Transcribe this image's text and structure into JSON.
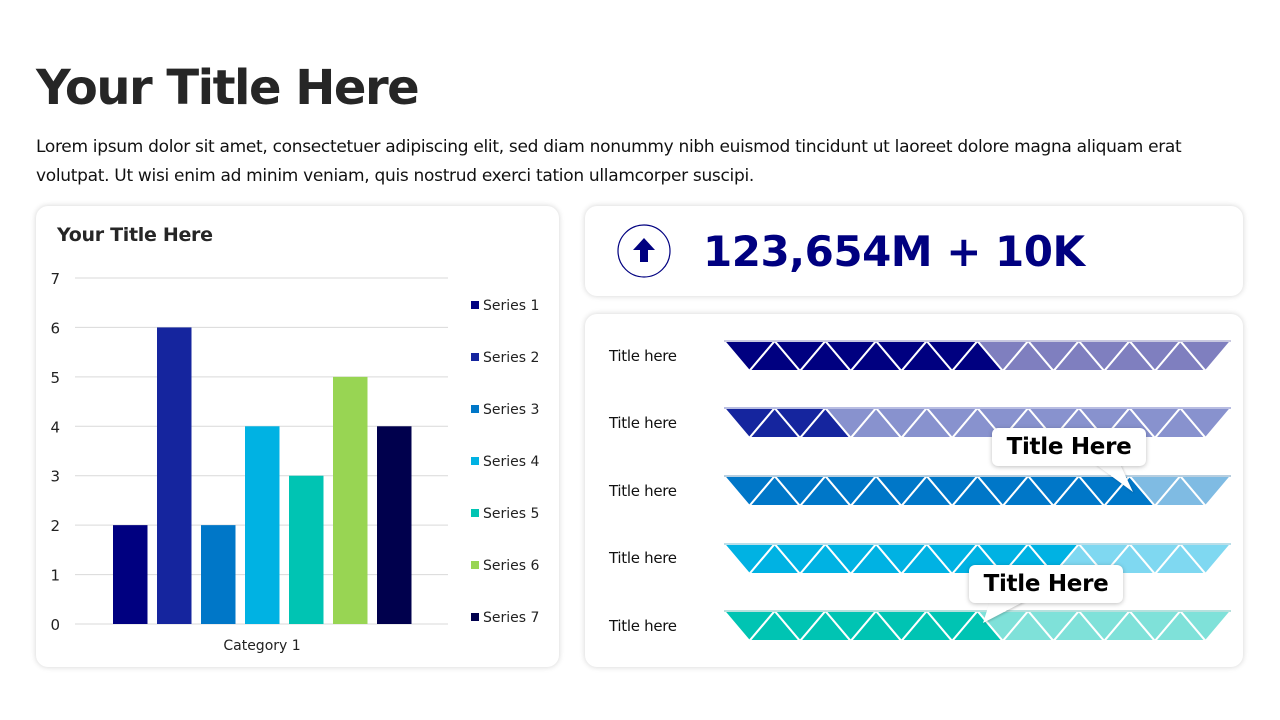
{
  "header": {
    "title": "Your Title Here",
    "body": "Lorem ipsum dolor sit amet, consectetuer adipiscing elit, sed diam nonummy nibh euismod tincidunt ut laoreet dolore magna aliquam erat volutpat. Ut wisi enim ad minim veniam, quis nostrud exerci tation ullamcorper suscipi."
  },
  "kpi": {
    "icon": "arrow-up-circle-icon",
    "value": "123,654M + 10K",
    "color": "#000080"
  },
  "chart_data": {
    "type": "bar",
    "title": "Your Title Here",
    "categories": [
      "Category 1"
    ],
    "series": [
      {
        "name": "Series 1",
        "values": [
          2
        ],
        "color": "#000080"
      },
      {
        "name": "Series 2",
        "values": [
          6
        ],
        "color": "#15259E"
      },
      {
        "name": "Series 3",
        "values": [
          2
        ],
        "color": "#0077C8"
      },
      {
        "name": "Series 4",
        "values": [
          4
        ],
        "color": "#00B2E3"
      },
      {
        "name": "Series 5",
        "values": [
          3
        ],
        "color": "#00C4B3"
      },
      {
        "name": "Series 6",
        "values": [
          5
        ],
        "color": "#98D553"
      },
      {
        "name": "Series 7",
        "values": [
          4
        ],
        "color": "#00004D"
      }
    ],
    "xlabel": "",
    "ylabel": "",
    "ylim": [
      0,
      7
    ],
    "yticks": [
      0,
      1,
      2,
      3,
      4,
      5,
      6,
      7
    ],
    "grid": true,
    "legend_position": "right"
  },
  "progress": {
    "segments_total": 19,
    "rows": [
      {
        "label": "Title here",
        "filled": 10,
        "dark": "#000080",
        "light": "#7F7FBF",
        "border": "#4B4B9A"
      },
      {
        "label": "Title here",
        "filled": 4,
        "dark": "#15259E",
        "light": "#8892CE",
        "border": "#15259E"
      },
      {
        "label": "Title here",
        "filled": 16,
        "dark": "#0077C8",
        "light": "#7FBBE3",
        "border": "#0B5E9A"
      },
      {
        "label": "Title here",
        "filled": 13,
        "dark": "#00B2E3",
        "light": "#7FD8F1",
        "border": "#1492B6"
      },
      {
        "label": "Title here",
        "filled": 10,
        "dark": "#00C4B3",
        "light": "#7FE1D9",
        "border": "#0F9A8E"
      }
    ],
    "callouts": [
      {
        "text": "Title Here",
        "row": 3
      },
      {
        "text": "Title Here",
        "row": 5
      }
    ]
  }
}
